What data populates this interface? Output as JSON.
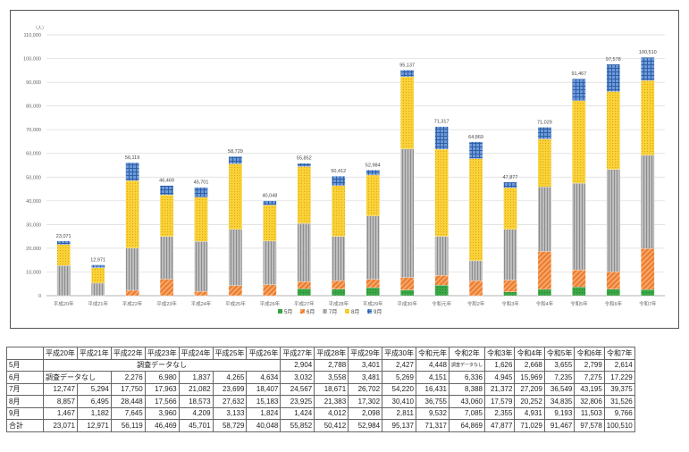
{
  "chart_data": {
    "type": "bar",
    "stacked": true,
    "unit_label": "（人）",
    "ylim": [
      0,
      110000
    ],
    "yticks": [
      "0",
      "10,000",
      "20,000",
      "30,000",
      "40,000",
      "50,000",
      "60,000",
      "70,000",
      "80,000",
      "90,000",
      "100,000",
      "110,000"
    ],
    "grid": true,
    "legend_position": "bottom",
    "categories": [
      "平成20年",
      "平成21年",
      "平成22年",
      "平成23年",
      "平成24年",
      "平成25年",
      "平成26年",
      "平成27年",
      "平成28年",
      "平成29年",
      "平成30年",
      "令和元年",
      "令和2年",
      "令和3年",
      "令和4年",
      "令和5年",
      "令和6年",
      "令和7年"
    ],
    "series": [
      {
        "name": "5月",
        "color": "#3aa845",
        "pattern": "dot",
        "values": [
          0,
          0,
          0,
          0,
          0,
          0,
          0,
          2904,
          2788,
          3401,
          2427,
          4448,
          0,
          1626,
          2668,
          3655,
          2799,
          2614
        ]
      },
      {
        "name": "6月",
        "color": "#f08a3c",
        "pattern": "diag",
        "values": [
          0,
          0,
          2276,
          6980,
          1837,
          4265,
          4634,
          3032,
          3558,
          3481,
          5269,
          4151,
          6336,
          4945,
          15969,
          7235,
          7275,
          17229
        ]
      },
      {
        "name": "7月",
        "color": "#a6a6a6",
        "pattern": "vert",
        "values": [
          12747,
          5294,
          17750,
          17963,
          21082,
          23699,
          18407,
          24567,
          18671,
          26702,
          54220,
          16431,
          8388,
          21372,
          27209,
          36549,
          43195,
          39375
        ]
      },
      {
        "name": "8月",
        "color": "#f7c82e",
        "pattern": "dots",
        "values": [
          8857,
          6495,
          28448,
          17566,
          18573,
          27632,
          15183,
          23925,
          21383,
          17302,
          30410,
          36755,
          43060,
          17579,
          20252,
          34835,
          32806,
          31526
        ]
      },
      {
        "name": "9月",
        "color": "#4f7fc6",
        "pattern": "grid",
        "values": [
          1467,
          1182,
          7645,
          3960,
          4209,
          3133,
          1824,
          1424,
          4012,
          2098,
          2811,
          9532,
          7085,
          2355,
          4931,
          9193,
          11503,
          9766
        ]
      }
    ],
    "totals": [
      23071,
      12971,
      56119,
      46469,
      45701,
      58729,
      40048,
      55852,
      50412,
      52984,
      95137,
      71317,
      64869,
      47877,
      71029,
      91467,
      97578,
      100510
    ],
    "total_labels": [
      "23,071",
      "12,971",
      "56,119",
      "46,469",
      "45,701",
      "58,729",
      "40,048",
      "55,852",
      "50,412",
      "52,984",
      "95,137",
      "71,317",
      "64,869",
      "47,877",
      "71,029",
      "91,467",
      "97,578",
      "100,510"
    ]
  },
  "table": {
    "headers": [
      "平成20年",
      "平成21年",
      "平成22年",
      "平成23年",
      "平成24年",
      "平成25年",
      "平成26年",
      "平成27年",
      "平成28年",
      "平成29年",
      "平成30年",
      "令和元年",
      "令和2年",
      "令和3年",
      "令和4年",
      "令和5年",
      "令和6年",
      "令和7年"
    ],
    "rows": [
      {
        "label": "5月",
        "note": "調査データなし",
        "cells": [
          "2,904",
          "2,788",
          "3,401",
          "2,427",
          "4,448",
          "調査データなし",
          "1,626",
          "2,668",
          "3,655",
          "2,799",
          "2,614"
        ]
      },
      {
        "label": "6月",
        "note": "調査データなし",
        "cells": [
          "2,276",
          "6,980",
          "1,837",
          "4,265",
          "4,634",
          "3,032",
          "3,558",
          "3,481",
          "5,269",
          "4,151",
          "6,336",
          "4,945",
          "15,969",
          "7,235",
          "7,275",
          "17,229"
        ]
      },
      {
        "label": "7月",
        "cells": [
          "12,747",
          "5,294",
          "17,750",
          "17,963",
          "21,082",
          "23,699",
          "18,407",
          "24,567",
          "18,671",
          "26,702",
          "54,220",
          "16,431",
          "8,388",
          "21,372",
          "27,209",
          "36,549",
          "43,195",
          "39,375"
        ]
      },
      {
        "label": "8月",
        "cells": [
          "8,857",
          "6,495",
          "28,448",
          "17,566",
          "18,573",
          "27,632",
          "15,183",
          "23,925",
          "21,383",
          "17,302",
          "30,410",
          "36,755",
          "43,060",
          "17,579",
          "20,252",
          "34,835",
          "32,806",
          "31,526"
        ]
      },
      {
        "label": "9月",
        "cells": [
          "1,467",
          "1,182",
          "7,645",
          "3,960",
          "4,209",
          "3,133",
          "1,824",
          "1,424",
          "4,012",
          "2,098",
          "2,811",
          "9,532",
          "7,085",
          "2,355",
          "4,931",
          "9,193",
          "11,503",
          "9,766"
        ]
      },
      {
        "label": "合計",
        "cells": [
          "23,071",
          "12,971",
          "56,119",
          "46,469",
          "45,701",
          "58,729",
          "40,048",
          "55,852",
          "50,412",
          "52,984",
          "95,137",
          "71,317",
          "64,869",
          "47,877",
          "71,029",
          "91,467",
          "97,578",
          "100,510"
        ]
      }
    ]
  }
}
